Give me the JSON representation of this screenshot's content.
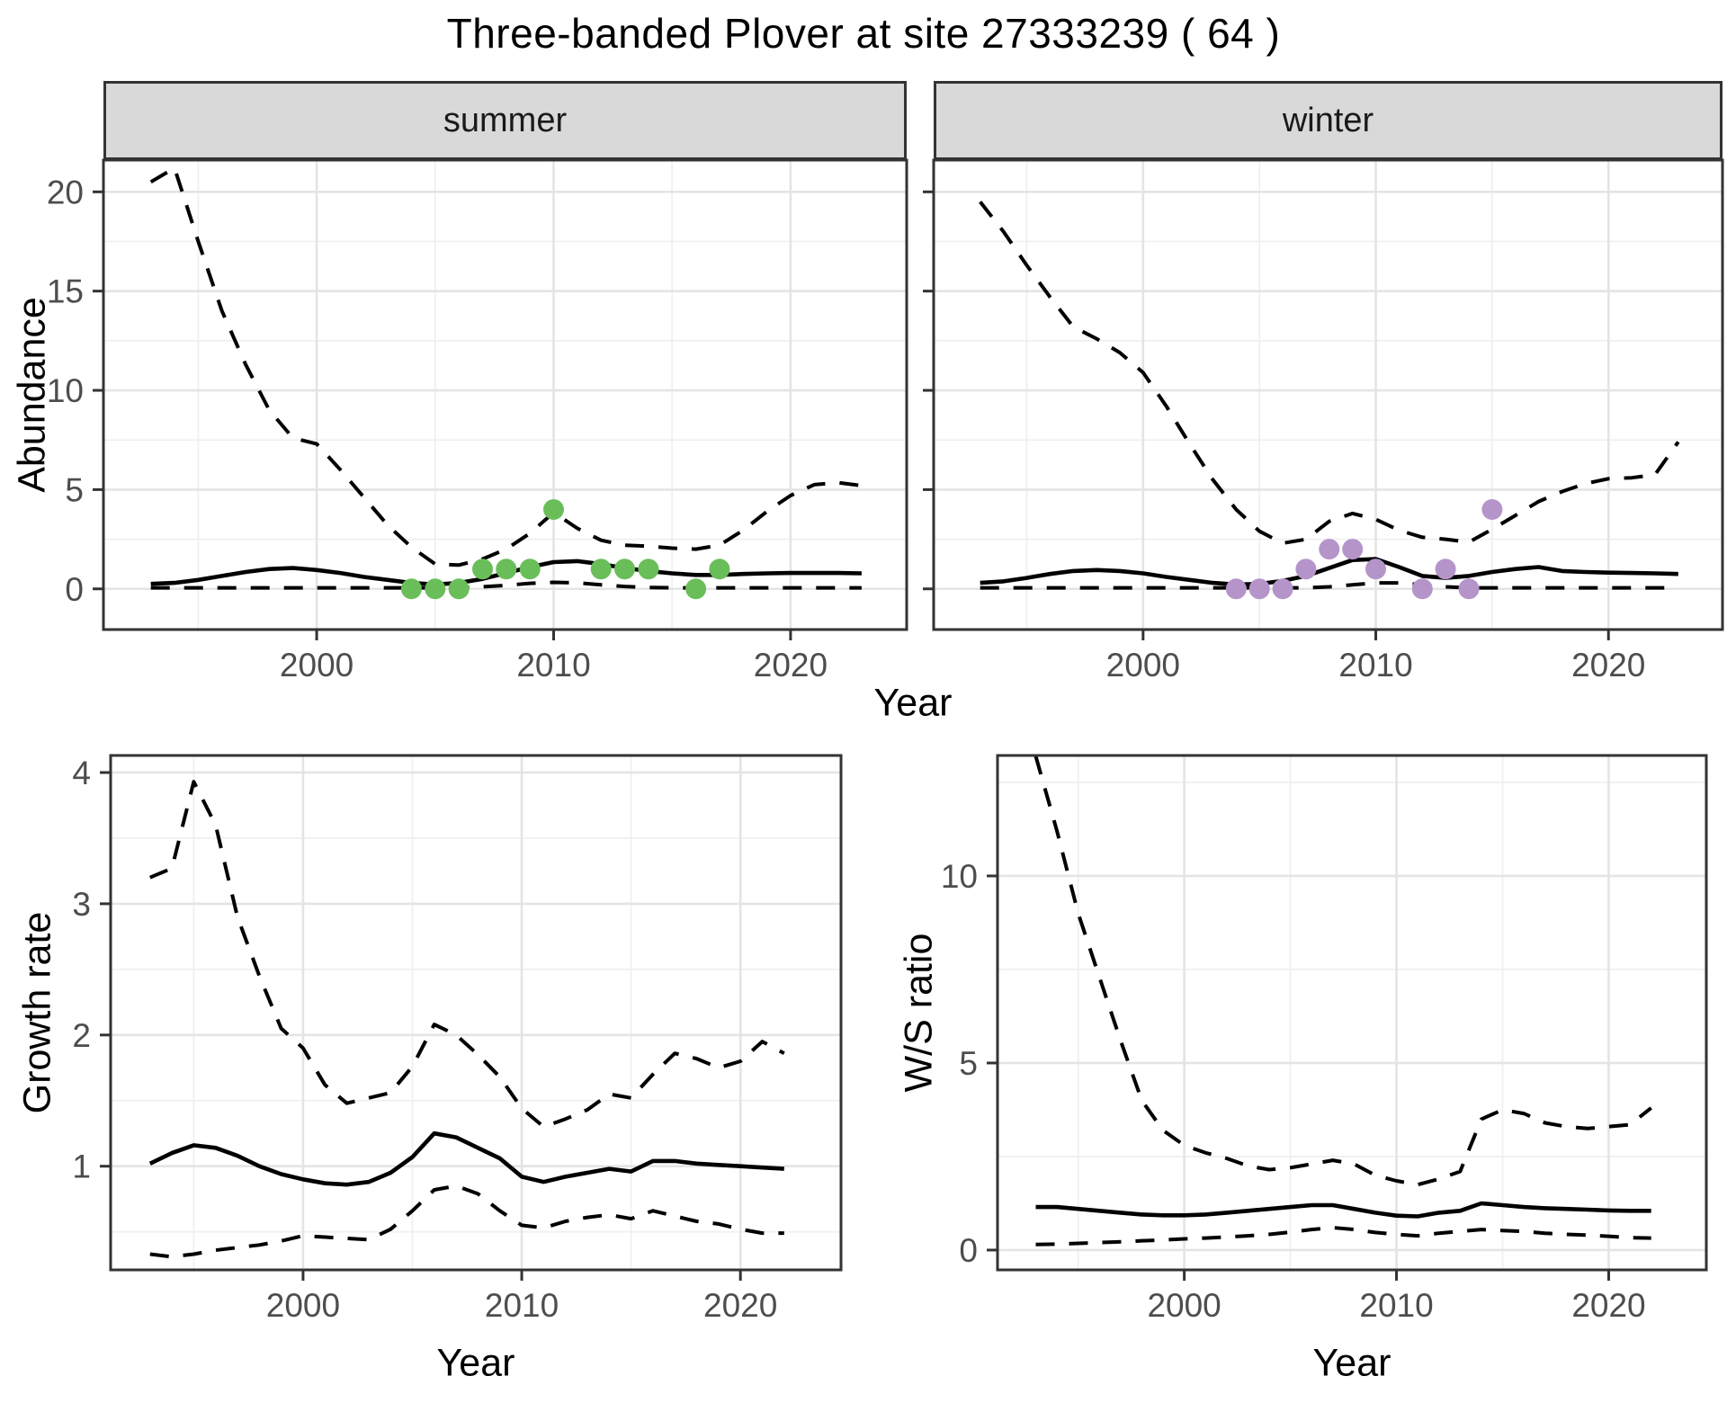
{
  "title": "Three-banded Plover at site 27333239 ( 64 )",
  "colors": {
    "summer_point": "#6ABE5A",
    "winter_point": "#B594CA",
    "line": "#000000",
    "grid_major": "#e4e4e4",
    "grid_minor": "#f0f0f0",
    "strip_bg": "#d9d9d9",
    "panel_border": "#333333",
    "tick_text": "#4d4d4d"
  },
  "axis_titles": {
    "abundance": "Abundance",
    "year_top": "Year",
    "growth_rate": "Growth rate",
    "year_growth": "Year",
    "ws_ratio": "W/S ratio",
    "year_ws": "Year"
  },
  "chart_data": [
    {
      "id": "abundance-summer",
      "type": "line",
      "strip_label": "summer",
      "ylabel": "Abundance",
      "xlabel": "Year",
      "x": [
        1993,
        1994,
        1995,
        1996,
        1997,
        1998,
        1999,
        2000,
        2001,
        2002,
        2003,
        2004,
        2005,
        2006,
        2007,
        2008,
        2009,
        2010,
        2011,
        2012,
        2013,
        2014,
        2015,
        2016,
        2017,
        2018,
        2019,
        2020,
        2021,
        2022,
        2023
      ],
      "series": [
        {
          "name": "upper_95ci",
          "style": "dashed",
          "values": [
            20.5,
            21.2,
            17.5,
            14.0,
            11.3,
            9.0,
            7.6,
            7.3,
            6.0,
            4.6,
            3.2,
            2.1,
            1.25,
            1.2,
            1.5,
            2.0,
            2.8,
            3.85,
            3.05,
            2.45,
            2.2,
            2.15,
            2.05,
            2.0,
            2.2,
            2.95,
            3.9,
            4.7,
            5.25,
            5.35,
            5.2
          ]
        },
        {
          "name": "median",
          "style": "solid",
          "values": [
            0.25,
            0.3,
            0.45,
            0.65,
            0.85,
            1.0,
            1.05,
            0.95,
            0.8,
            0.6,
            0.45,
            0.3,
            0.22,
            0.3,
            0.5,
            0.8,
            1.1,
            1.35,
            1.4,
            1.25,
            1.05,
            0.9,
            0.78,
            0.7,
            0.7,
            0.75,
            0.78,
            0.8,
            0.8,
            0.8,
            0.78
          ]
        },
        {
          "name": "lower_95ci",
          "style": "dashed",
          "values": [
            0.05,
            0.05,
            0.05,
            0.05,
            0.05,
            0.05,
            0.05,
            0.05,
            0.05,
            0.05,
            0.05,
            0.05,
            0.05,
            0.05,
            0.1,
            0.18,
            0.28,
            0.33,
            0.3,
            0.2,
            0.12,
            0.07,
            0.05,
            0.05,
            0.05,
            0.05,
            0.05,
            0.05,
            0.05,
            0.05,
            0.05
          ]
        }
      ],
      "points": {
        "name": "observed-counts",
        "color_key": "summer_point",
        "x": [
          2004,
          2005,
          2006,
          2007,
          2008,
          2009,
          2010,
          2012,
          2013,
          2014,
          2016,
          2017
        ],
        "y": [
          0,
          0,
          0,
          1,
          1,
          1,
          4,
          1,
          1,
          1,
          0,
          1
        ]
      },
      "xlim": [
        1991.0,
        2024.9
      ],
      "ylim": [
        -2.05,
        21.6
      ],
      "xticks": [
        2000,
        2010,
        2020
      ],
      "yticks": [
        0,
        5,
        10,
        15,
        20
      ],
      "xticks_minor": [
        1995,
        2005,
        2015
      ],
      "yticks_minor": [
        2.5,
        7.5,
        12.5,
        17.5
      ],
      "show_y_tick_labels": true
    },
    {
      "id": "abundance-winter",
      "type": "line",
      "strip_label": "winter",
      "ylabel": "Abundance",
      "xlabel": "Year",
      "x": [
        1993,
        1994,
        1995,
        1996,
        1997,
        1998,
        1999,
        2000,
        2001,
        2002,
        2003,
        2004,
        2005,
        2006,
        2007,
        2008,
        2009,
        2010,
        2011,
        2012,
        2013,
        2014,
        2015,
        2016,
        2017,
        2018,
        2019,
        2020,
        2021,
        2022,
        2023
      ],
      "series": [
        {
          "name": "upper_95ci",
          "style": "dashed",
          "values": [
            19.5,
            18.0,
            16.3,
            14.7,
            13.2,
            12.6,
            11.9,
            10.9,
            9.2,
            7.3,
            5.5,
            4.0,
            2.9,
            2.3,
            2.5,
            3.4,
            3.8,
            3.5,
            2.95,
            2.6,
            2.5,
            2.35,
            3.0,
            3.7,
            4.4,
            4.9,
            5.3,
            5.55,
            5.6,
            5.75,
            7.4
          ]
        },
        {
          "name": "median",
          "style": "solid",
          "values": [
            0.3,
            0.38,
            0.55,
            0.75,
            0.9,
            0.95,
            0.9,
            0.78,
            0.6,
            0.45,
            0.3,
            0.22,
            0.25,
            0.4,
            0.65,
            1.05,
            1.45,
            1.5,
            1.1,
            0.65,
            0.55,
            0.65,
            0.85,
            1.0,
            1.1,
            0.9,
            0.85,
            0.82,
            0.8,
            0.78,
            0.75
          ]
        },
        {
          "name": "lower_95ci",
          "style": "dashed",
          "values": [
            0.05,
            0.05,
            0.05,
            0.05,
            0.05,
            0.05,
            0.05,
            0.05,
            0.05,
            0.05,
            0.05,
            0.05,
            0.05,
            0.05,
            0.05,
            0.1,
            0.2,
            0.3,
            0.3,
            0.2,
            0.1,
            0.05,
            0.05,
            0.05,
            0.05,
            0.05,
            0.05,
            0.05,
            0.05,
            0.05,
            0.05
          ]
        }
      ],
      "points": {
        "name": "observed-counts",
        "color_key": "winter_point",
        "x": [
          2004,
          2005,
          2006,
          2007,
          2008,
          2009,
          2010,
          2012,
          2013,
          2014,
          2015
        ],
        "y": [
          0,
          0,
          0,
          1,
          2,
          2,
          1,
          0,
          1,
          0,
          4
        ]
      },
      "xlim": [
        1991.0,
        2024.9
      ],
      "ylim": [
        -2.05,
        21.6
      ],
      "xticks": [
        2000,
        2010,
        2020
      ],
      "yticks": [
        0,
        5,
        10,
        15,
        20
      ],
      "xticks_minor": [
        1995,
        2005,
        2015
      ],
      "yticks_minor": [
        2.5,
        7.5,
        12.5,
        17.5
      ],
      "show_y_tick_labels": false
    },
    {
      "id": "growth-rate",
      "type": "line",
      "strip_label": "",
      "ylabel": "Growth rate",
      "xlabel": "Year",
      "x": [
        1993,
        1994,
        1995,
        1996,
        1997,
        1998,
        1999,
        2000,
        2001,
        2002,
        2003,
        2004,
        2005,
        2006,
        2007,
        2008,
        2009,
        2010,
        2011,
        2012,
        2013,
        2014,
        2015,
        2016,
        2017,
        2018,
        2019,
        2020,
        2021,
        2022
      ],
      "series": [
        {
          "name": "upper_95ci",
          "style": "dashed",
          "values": [
            3.2,
            3.27,
            3.93,
            3.6,
            2.9,
            2.45,
            2.05,
            1.9,
            1.62,
            1.48,
            1.52,
            1.56,
            1.76,
            2.08,
            2.0,
            1.85,
            1.68,
            1.44,
            1.3,
            1.36,
            1.43,
            1.55,
            1.52,
            1.7,
            1.86,
            1.82,
            1.75,
            1.8,
            1.95,
            1.86
          ]
        },
        {
          "name": "median",
          "style": "solid",
          "values": [
            1.02,
            1.1,
            1.16,
            1.14,
            1.08,
            1.0,
            0.94,
            0.9,
            0.87,
            0.86,
            0.88,
            0.95,
            1.07,
            1.25,
            1.22,
            1.14,
            1.06,
            0.92,
            0.88,
            0.92,
            0.95,
            0.98,
            0.96,
            1.04,
            1.04,
            1.02,
            1.01,
            1.0,
            0.99,
            0.98
          ]
        },
        {
          "name": "lower_95ci",
          "style": "dashed",
          "values": [
            0.33,
            0.31,
            0.33,
            0.36,
            0.38,
            0.4,
            0.43,
            0.47,
            0.46,
            0.45,
            0.44,
            0.52,
            0.66,
            0.82,
            0.85,
            0.79,
            0.66,
            0.55,
            0.53,
            0.58,
            0.61,
            0.63,
            0.6,
            0.66,
            0.62,
            0.58,
            0.56,
            0.52,
            0.49,
            0.49
          ]
        }
      ],
      "points": null,
      "xlim": [
        1991.2,
        2024.6
      ],
      "ylim": [
        0.21,
        4.13
      ],
      "xticks": [
        2000,
        2010,
        2020
      ],
      "yticks": [
        1,
        2,
        3,
        4
      ],
      "xticks_minor": [
        1995,
        2005,
        2015
      ],
      "yticks_minor": [
        0.5,
        1.5,
        2.5,
        3.5
      ],
      "show_y_tick_labels": true
    },
    {
      "id": "ws-ratio",
      "type": "line",
      "strip_label": "",
      "ylabel": "W/S ratio",
      "xlabel": "Year",
      "x": [
        1993,
        1994,
        1995,
        1996,
        1997,
        1998,
        1999,
        2000,
        2001,
        2002,
        2003,
        2004,
        2005,
        2006,
        2007,
        2008,
        2009,
        2010,
        2011,
        2012,
        2013,
        2014,
        2015,
        2016,
        2017,
        2018,
        2019,
        2020,
        2021,
        2022
      ],
      "series": [
        {
          "name": "upper_95ci",
          "style": "dashed",
          "values": [
            13.2,
            11.2,
            9.0,
            7.3,
            5.6,
            4.0,
            3.2,
            2.8,
            2.6,
            2.45,
            2.25,
            2.15,
            2.2,
            2.3,
            2.4,
            2.3,
            2.0,
            1.85,
            1.75,
            1.9,
            2.1,
            3.5,
            3.75,
            3.65,
            3.4,
            3.3,
            3.25,
            3.3,
            3.35,
            3.8
          ]
        },
        {
          "name": "median",
          "style": "solid",
          "values": [
            1.15,
            1.15,
            1.1,
            1.05,
            1.0,
            0.95,
            0.93,
            0.93,
            0.95,
            1.0,
            1.05,
            1.1,
            1.15,
            1.2,
            1.2,
            1.1,
            1.0,
            0.92,
            0.9,
            1.0,
            1.05,
            1.25,
            1.2,
            1.15,
            1.12,
            1.1,
            1.08,
            1.06,
            1.05,
            1.05
          ]
        },
        {
          "name": "lower_95ci",
          "style": "dashed",
          "values": [
            0.15,
            0.16,
            0.18,
            0.2,
            0.22,
            0.25,
            0.27,
            0.3,
            0.32,
            0.35,
            0.38,
            0.42,
            0.48,
            0.55,
            0.6,
            0.55,
            0.47,
            0.42,
            0.38,
            0.45,
            0.5,
            0.55,
            0.52,
            0.5,
            0.45,
            0.42,
            0.4,
            0.37,
            0.33,
            0.32
          ]
        }
      ],
      "points": null,
      "xlim": [
        1991.2,
        2024.6
      ],
      "ylim": [
        -0.53,
        13.22
      ],
      "xticks": [
        2000,
        2010,
        2020
      ],
      "yticks": [
        0,
        5,
        10
      ],
      "xticks_minor": [
        1995,
        2005,
        2015
      ],
      "yticks_minor": [
        2.5,
        7.5,
        12.5
      ],
      "show_y_tick_labels": true
    }
  ]
}
